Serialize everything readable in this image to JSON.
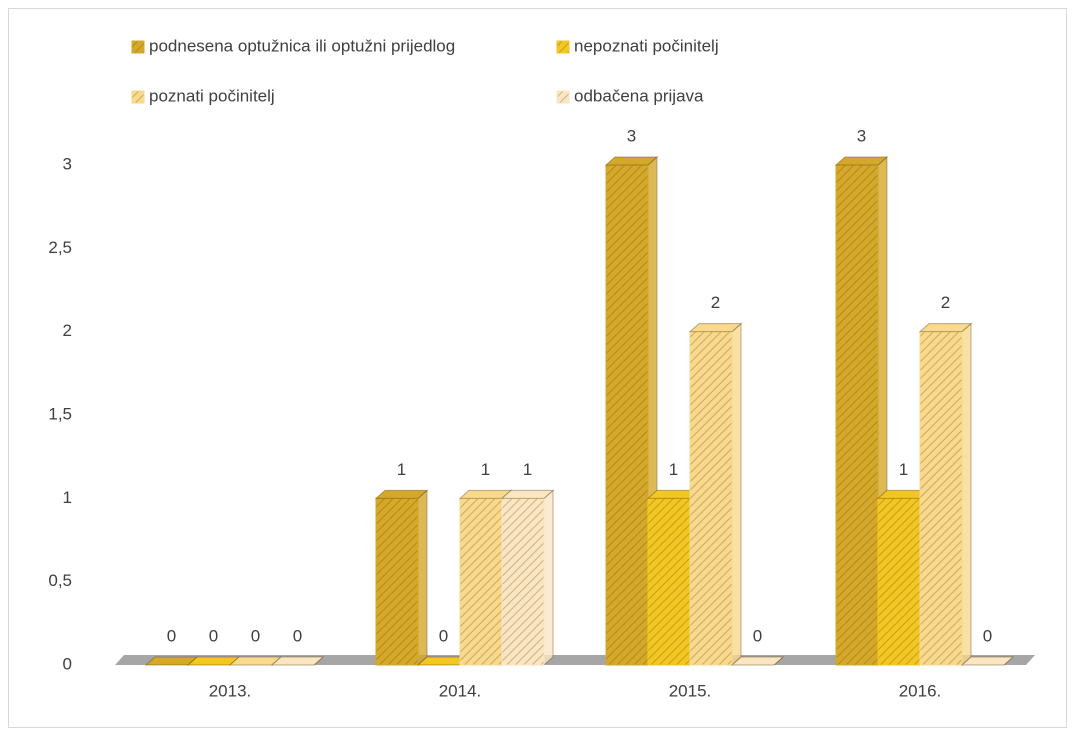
{
  "chart_data": {
    "type": "bar3d",
    "categories": [
      "2013.",
      "2014.",
      "2015.",
      "2016."
    ],
    "series": [
      {
        "name": "podnesena optužnica ili optužni prijedlog",
        "color": "#d4a82a",
        "values": [
          0,
          1,
          3,
          3
        ]
      },
      {
        "name": "nepoznati počinitelj",
        "color": "#f2c623",
        "values": [
          0,
          0,
          1,
          1
        ]
      },
      {
        "name": "poznati počinitelj",
        "color": "#f8d98e",
        "values": [
          0,
          1,
          2,
          2
        ]
      },
      {
        "name": "odbačena prijava",
        "color": "#fbe6c4",
        "values": [
          0,
          1,
          0,
          0
        ]
      }
    ],
    "ylim": [
      0,
      3
    ],
    "yticks": [
      0,
      {
        "value": 0.5,
        "label": "0,5"
      },
      1,
      {
        "value": 1.5,
        "label": "1,5"
      },
      2,
      {
        "value": 2.5,
        "label": "2,5"
      },
      3
    ],
    "grid": false
  }
}
